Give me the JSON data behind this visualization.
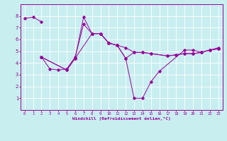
{
  "xlabel": "Windchill (Refroidissement éolien,°C)",
  "bg_color": "#c8eef0",
  "grid_color": "#ffffff",
  "line_color": "#990099",
  "xlim": [
    -0.5,
    23.5
  ],
  "ylim": [
    0,
    9
  ],
  "xticks": [
    0,
    1,
    2,
    3,
    4,
    5,
    6,
    7,
    8,
    9,
    10,
    11,
    12,
    13,
    14,
    15,
    16,
    17,
    18,
    19,
    20,
    21,
    22,
    23
  ],
  "yticks": [
    1,
    2,
    3,
    4,
    5,
    6,
    7,
    8
  ],
  "line1_x": [
    0,
    1,
    2
  ],
  "line1_y": [
    7.8,
    7.9,
    7.5
  ],
  "line2_x": [
    2,
    3,
    4,
    5,
    6,
    7,
    8,
    9,
    10,
    11,
    12,
    13,
    14,
    15,
    17,
    18,
    19,
    20,
    21,
    22,
    23
  ],
  "line2_y": [
    4.5,
    3.5,
    3.4,
    3.5,
    4.5,
    7.3,
    6.5,
    6.5,
    5.7,
    5.5,
    5.3,
    4.9,
    4.9,
    4.8,
    4.6,
    4.7,
    4.8,
    4.8,
    4.9,
    5.1,
    5.2
  ],
  "line3_x": [
    2,
    5,
    6,
    7,
    8,
    9,
    10,
    11,
    12,
    13,
    14,
    15,
    16,
    19,
    20,
    21,
    22,
    23
  ],
  "line3_y": [
    4.5,
    3.4,
    4.4,
    7.9,
    6.5,
    6.5,
    5.7,
    5.5,
    4.4,
    1.0,
    1.0,
    2.4,
    3.3,
    5.1,
    5.1,
    4.9,
    5.1,
    5.3
  ],
  "line4_x": [
    2,
    5,
    6,
    8,
    9,
    10,
    11,
    12,
    13,
    14,
    15,
    17,
    18,
    19,
    20,
    21,
    22,
    23
  ],
  "line4_y": [
    4.5,
    3.4,
    4.4,
    6.5,
    6.5,
    5.7,
    5.5,
    4.4,
    4.9,
    4.9,
    4.8,
    4.6,
    4.7,
    4.8,
    4.8,
    4.9,
    5.1,
    5.2
  ]
}
